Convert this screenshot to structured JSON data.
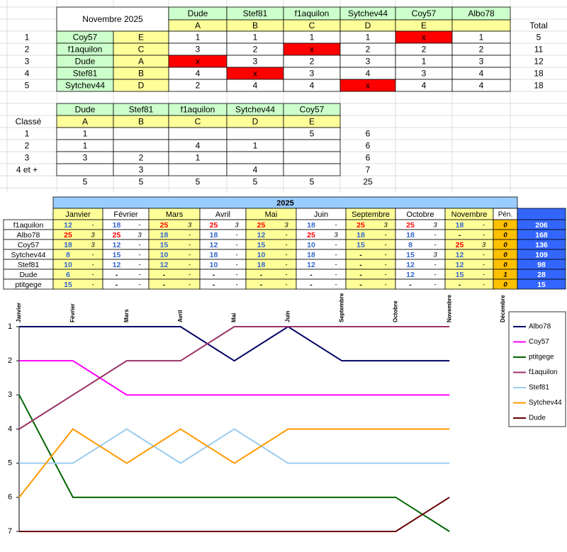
{
  "table1": {
    "title": "Novembre 2025",
    "total_label": "Total",
    "columns": [
      {
        "name": "Dude",
        "letter": "A"
      },
      {
        "name": "Stef81",
        "letter": "B"
      },
      {
        "name": "f1aquilon",
        "letter": "C"
      },
      {
        "name": "Sytchev44",
        "letter": "D"
      },
      {
        "name": "Coy57",
        "letter": "E"
      },
      {
        "name": "Albo78",
        "letter": null
      }
    ],
    "rows": [
      {
        "rank": 1,
        "name": "Coy57",
        "letter": "E",
        "scores": [
          1,
          1,
          1,
          1,
          "x",
          1
        ],
        "total": 5
      },
      {
        "rank": 2,
        "name": "f1aquilon",
        "letter": "C",
        "scores": [
          3,
          2,
          "x",
          2,
          2,
          2
        ],
        "total": 11
      },
      {
        "rank": 3,
        "name": "Dude",
        "letter": "A",
        "scores": [
          "x",
          3,
          2,
          3,
          1,
          3
        ],
        "total": 12
      },
      {
        "rank": 4,
        "name": "Stef81",
        "letter": "B",
        "scores": [
          4,
          "x",
          3,
          4,
          3,
          4
        ],
        "total": 18
      },
      {
        "rank": 5,
        "name": "Sytchev44",
        "letter": "D",
        "scores": [
          2,
          4,
          4,
          "x",
          4,
          4
        ],
        "total": 18
      }
    ]
  },
  "table2": {
    "label": "Classé",
    "columns": [
      {
        "name": "Dude",
        "letter": "A"
      },
      {
        "name": "Stef81",
        "letter": "B"
      },
      {
        "name": "f1aquilon",
        "letter": "C"
      },
      {
        "name": "Sytchev44",
        "letter": "D"
      },
      {
        "name": "Coy57",
        "letter": "E"
      }
    ],
    "rows": [
      {
        "rank": 1,
        "cells": [
          1,
          null,
          null,
          null,
          5
        ],
        "total": 6
      },
      {
        "rank": 2,
        "cells": [
          1,
          null,
          4,
          1,
          null
        ],
        "total": 6
      },
      {
        "rank": 3,
        "cells": [
          3,
          2,
          1,
          null,
          null
        ],
        "total": 6
      },
      {
        "rank": "4 et +",
        "cells": [
          null,
          3,
          null,
          4,
          null
        ],
        "total": 7
      }
    ],
    "totals": {
      "cells": [
        5,
        5,
        5,
        5,
        5
      ],
      "total": 25
    }
  },
  "table3": {
    "year": "2025",
    "months": [
      "Janvier",
      "Février",
      "Mars",
      "Avril",
      "Mai",
      "Juin",
      "Septembre",
      "Octobre",
      "Novembre"
    ],
    "penalty_label": "Pén.",
    "rows": [
      {
        "name": "f1aquilon",
        "cells": [
          [
            12,
            "-"
          ],
          [
            18,
            "-"
          ],
          [
            25,
            3
          ],
          [
            25,
            3
          ],
          [
            25,
            3
          ],
          [
            18,
            "-"
          ],
          [
            25,
            3
          ],
          [
            25,
            3
          ],
          [
            18,
            "-"
          ]
        ],
        "penalty": 0,
        "total": 206
      },
      {
        "name": "Albo78",
        "cells": [
          [
            25,
            3
          ],
          [
            25,
            3
          ],
          [
            18,
            "-"
          ],
          [
            18,
            "-"
          ],
          [
            12,
            "-"
          ],
          [
            25,
            3
          ],
          [
            18,
            "-"
          ],
          [
            18,
            "-"
          ],
          [
            "-",
            "-"
          ]
        ],
        "penalty": 0,
        "total": 168
      },
      {
        "name": "Coy57",
        "cells": [
          [
            18,
            3
          ],
          [
            12,
            "-"
          ],
          [
            15,
            "-"
          ],
          [
            12,
            "-"
          ],
          [
            15,
            "-"
          ],
          [
            10,
            "-"
          ],
          [
            15,
            "-"
          ],
          [
            8,
            "-"
          ],
          [
            25,
            3
          ]
        ],
        "penalty": 0,
        "total": 136
      },
      {
        "name": "Sytchev44",
        "cells": [
          [
            8,
            "-"
          ],
          [
            15,
            "-"
          ],
          [
            10,
            "-"
          ],
          [
            18,
            "-"
          ],
          [
            10,
            "-"
          ],
          [
            18,
            "-"
          ],
          [
            "-",
            "-"
          ],
          [
            15,
            3
          ],
          [
            12,
            "-"
          ]
        ],
        "penalty": 0,
        "total": 109
      },
      {
        "name": "Stef81",
        "cells": [
          [
            10,
            "-"
          ],
          [
            12,
            "-"
          ],
          [
            12,
            "-"
          ],
          [
            10,
            "-"
          ],
          [
            18,
            "-"
          ],
          [
            12,
            "-"
          ],
          [
            "-",
            "-"
          ],
          [
            12,
            "-"
          ],
          [
            12,
            "-"
          ]
        ],
        "penalty": 0,
        "total": 98
      },
      {
        "name": "Dude",
        "cells": [
          [
            6,
            "-"
          ],
          [
            "-",
            "-"
          ],
          [
            "-",
            "-"
          ],
          [
            "-",
            "-"
          ],
          [
            "-",
            "-"
          ],
          [
            "-",
            "-"
          ],
          [
            "-",
            "-"
          ],
          [
            12,
            "-"
          ],
          [
            15,
            "-"
          ]
        ],
        "penalty": 1,
        "total": 28
      },
      {
        "name": "ptitgege",
        "cells": [
          [
            15,
            "-"
          ],
          [
            "-",
            "-"
          ],
          [
            "-",
            "-"
          ],
          [
            "-",
            "-"
          ],
          [
            "-",
            "-"
          ],
          [
            "-",
            "-"
          ],
          [
            "-",
            "-"
          ],
          [
            "-",
            "-"
          ],
          [
            "-",
            "-"
          ]
        ],
        "penalty": 0,
        "total": 15
      }
    ]
  },
  "chart_data": {
    "type": "line",
    "categories": [
      "Janvier",
      "Février",
      "Mars",
      "Avril",
      "Mai",
      "Juin",
      "Septembre",
      "Octobre",
      "Novembre",
      "Décembre"
    ],
    "ylim": [
      1,
      7
    ],
    "yticks": [
      1,
      2,
      3,
      4,
      5,
      6,
      7
    ],
    "y_reversed": true,
    "legend": "right",
    "series": [
      {
        "name": "Albo78",
        "color": "#000066",
        "values": [
          1,
          1,
          1,
          1,
          2,
          1,
          2,
          2,
          2,
          null
        ]
      },
      {
        "name": "Coy57",
        "color": "#ff00ff",
        "values": [
          2,
          2,
          3,
          3,
          3,
          3,
          3,
          3,
          3,
          null
        ]
      },
      {
        "name": "ptitgege",
        "color": "#006600",
        "values": [
          3,
          6,
          6,
          6,
          6,
          6,
          6,
          6,
          7,
          null
        ]
      },
      {
        "name": "f1aquilon",
        "color": "#993366",
        "values": [
          4,
          3,
          2,
          2,
          1,
          1,
          1,
          1,
          1,
          null
        ]
      },
      {
        "name": "Stef81",
        "color": "#99ccee",
        "values": [
          5,
          5,
          4,
          5,
          4,
          5,
          5,
          5,
          5,
          null
        ]
      },
      {
        "name": "Sytchev44",
        "color": "#ff9900",
        "values": [
          6,
          4,
          5,
          4,
          5,
          4,
          4,
          4,
          4,
          null
        ]
      },
      {
        "name": "Dude",
        "color": "#660000",
        "values": [
          7,
          7,
          7,
          7,
          7,
          7,
          7,
          7,
          6,
          null
        ]
      }
    ]
  }
}
